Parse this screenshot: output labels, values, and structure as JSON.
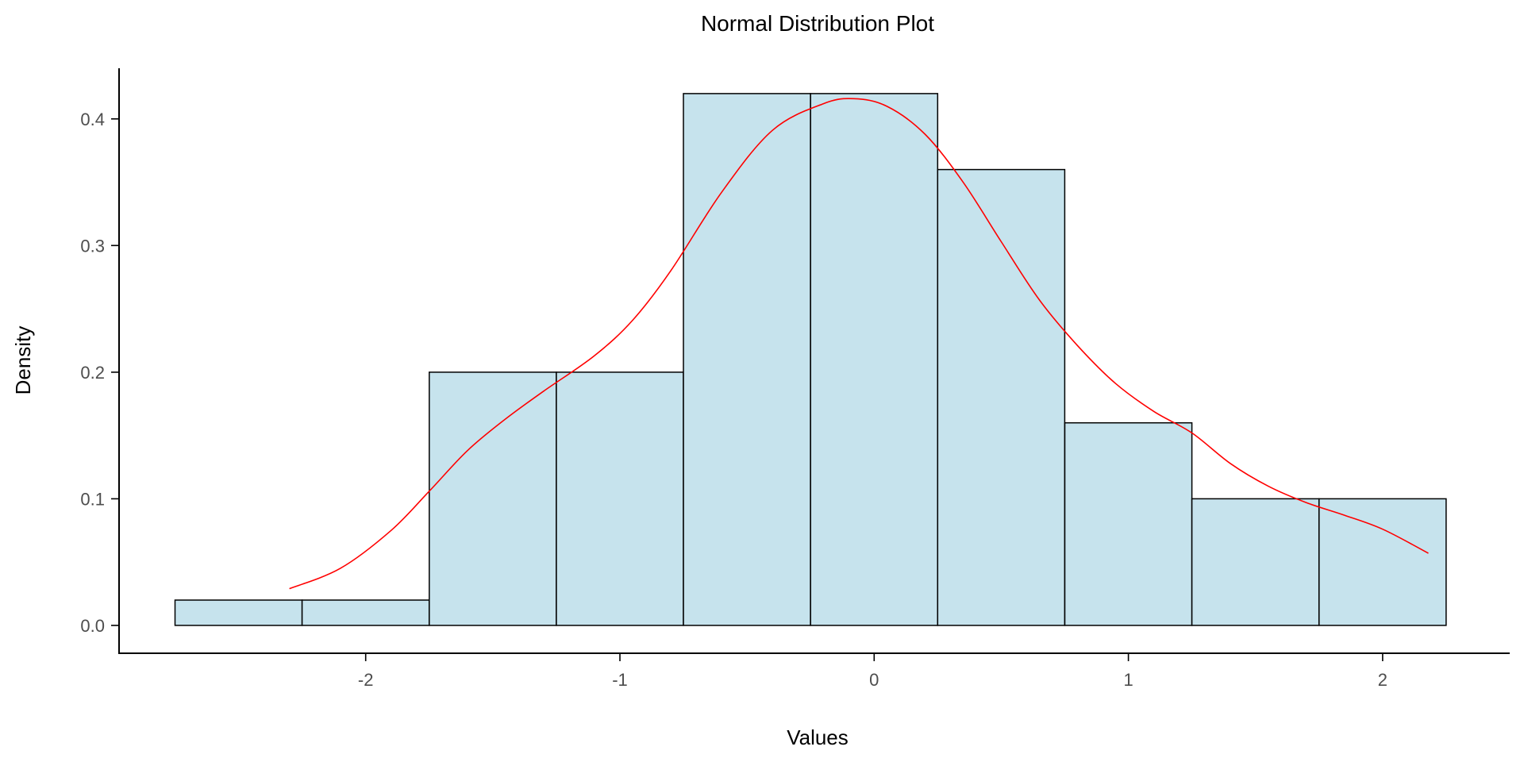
{
  "chart_data": {
    "type": "histogram",
    "title": "Normal Distribution Plot",
    "xlabel": "Values",
    "ylabel": "Density",
    "xlim": [
      -2.97,
      2.5
    ],
    "ylim": [
      -0.022,
      0.44
    ],
    "x_ticks": [
      -2,
      -1,
      0,
      1,
      2
    ],
    "x_tick_labels": [
      "-2",
      "-1",
      "0",
      "1",
      "2"
    ],
    "y_ticks": [
      0.0,
      0.1,
      0.2,
      0.3,
      0.4
    ],
    "y_tick_labels": [
      "0.0",
      "0.1",
      "0.2",
      "0.3",
      "0.4"
    ],
    "grid": false,
    "bar_color": "#c6e3ed",
    "bar_edge_color": "#000000",
    "bins": [
      {
        "x0": -2.75,
        "x1": -2.25,
        "density": 0.02
      },
      {
        "x0": -2.25,
        "x1": -1.75,
        "density": 0.02
      },
      {
        "x0": -1.75,
        "x1": -1.25,
        "density": 0.2
      },
      {
        "x0": -1.25,
        "x1": -0.75,
        "density": 0.2
      },
      {
        "x0": -0.75,
        "x1": -0.25,
        "density": 0.42
      },
      {
        "x0": -0.25,
        "x1": 0.25,
        "density": 0.42
      },
      {
        "x0": 0.25,
        "x1": 0.75,
        "density": 0.36
      },
      {
        "x0": 0.75,
        "x1": 1.25,
        "density": 0.16
      },
      {
        "x0": 1.25,
        "x1": 1.75,
        "density": 0.1
      },
      {
        "x0": 1.75,
        "x1": 2.25,
        "density": 0.1
      }
    ],
    "density_curve": {
      "color": "#ff0000",
      "x": [
        -2.3,
        -2.1,
        -1.9,
        -1.75,
        -1.6,
        -1.45,
        -1.3,
        -1.1,
        -0.95,
        -0.8,
        -0.6,
        -0.4,
        -0.2,
        -0.08,
        0.05,
        0.2,
        0.35,
        0.5,
        0.65,
        0.8,
        0.95,
        1.1,
        1.25,
        1.4,
        1.55,
        1.7,
        1.85,
        2.0,
        2.18
      ],
      "y": [
        0.029,
        0.045,
        0.075,
        0.106,
        0.138,
        0.163,
        0.185,
        0.213,
        0.241,
        0.28,
        0.342,
        0.391,
        0.412,
        0.416,
        0.41,
        0.388,
        0.35,
        0.303,
        0.257,
        0.221,
        0.191,
        0.169,
        0.152,
        0.128,
        0.11,
        0.097,
        0.087,
        0.076,
        0.057
      ]
    }
  }
}
